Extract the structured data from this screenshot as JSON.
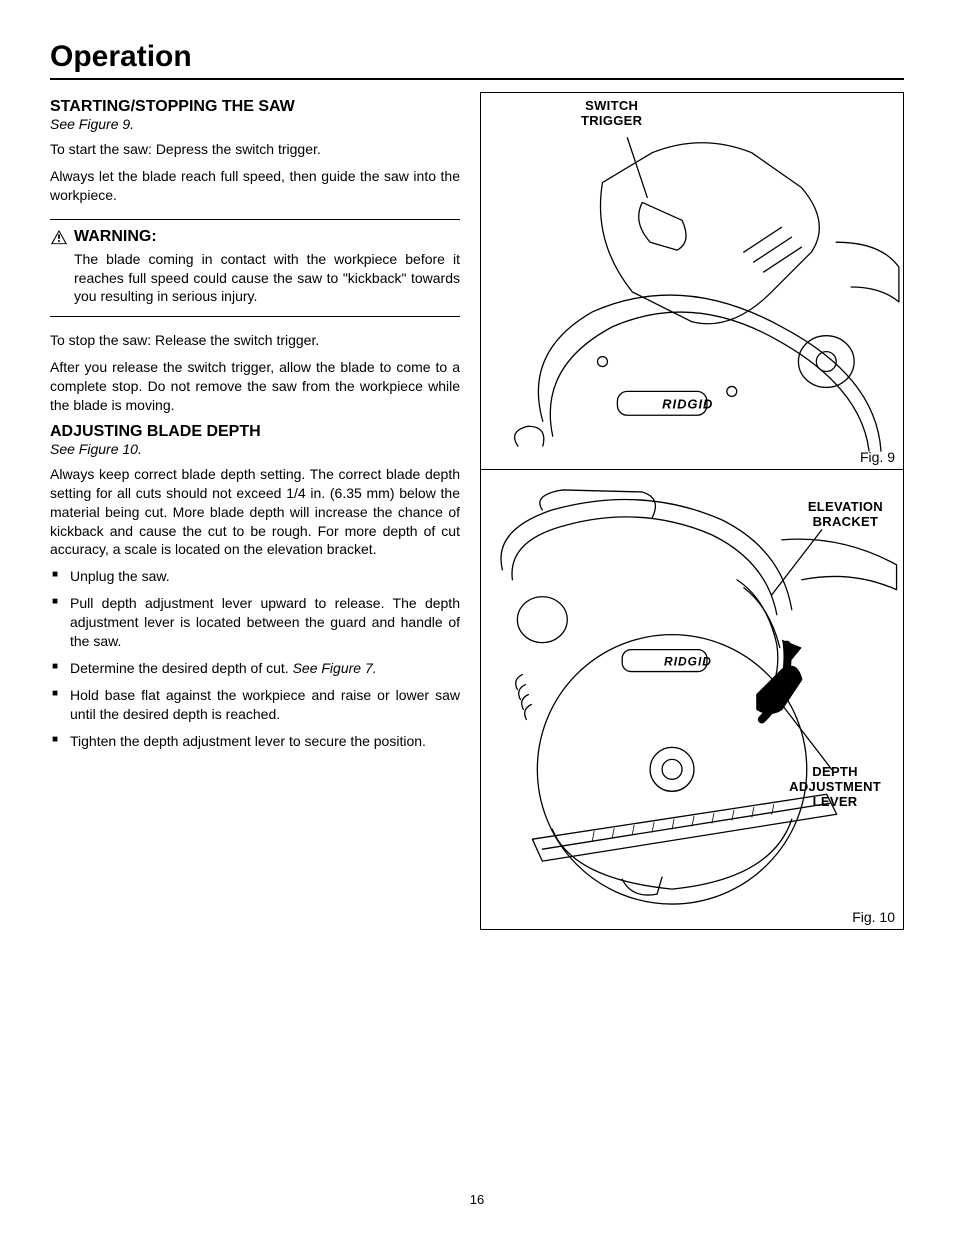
{
  "page": {
    "title": "Operation",
    "number": "16"
  },
  "section1": {
    "heading": "STARTING/STOPPING THE SAW",
    "figref": "See Figure 9.",
    "p1": "To start the saw: Depress the switch trigger.",
    "p2": "Always let the blade reach full speed, then guide the saw into the workpiece."
  },
  "warning": {
    "label": "WARNING:",
    "text": "The blade coming in contact with the workpiece before it reaches full speed could cause the saw to \"kickback\" towards you resulting in serious injury."
  },
  "section1b": {
    "p3": "To stop the saw: Release the switch trigger.",
    "p4": "After you  release the switch trigger, allow the blade to come to a complete stop. Do not remove the saw from the work­piece while the blade is moving."
  },
  "section2": {
    "heading": "ADJUSTING BLADE DEPTH",
    "figref": "See Figure 10.",
    "intro": "Always keep correct blade depth setting. The correct blade depth setting for all cuts should not exceed 1/4 in. (6.35 mm) below the material being cut. More blade depth will increase the chance of kickback and cause the cut to be rough. For more depth of cut accuracy, a scale is located on the elevation bracket.",
    "steps": [
      "Unplug the saw.",
      "Pull depth adjustment lever upward to release. The depth adjustment lever is located between the guard and handle of the saw.",
      "Determine the desired depth of cut. ",
      "Hold base flat against the workpiece and raise or lower saw until the desired depth is reached.",
      "Tighten the depth adjustment lever to secure the position."
    ],
    "step3_suffix": "See Figure 7."
  },
  "figures": {
    "fig9": {
      "caption": "Fig. 9",
      "callouts": {
        "switch_trigger": "SWITCH\nTRIGGER"
      }
    },
    "fig10": {
      "caption": "Fig. 10",
      "callouts": {
        "elevation_bracket": "ELEVATION\nBRACKET",
        "depth_lever": "DEPTH\nADJUSTMENT\nLEVER"
      }
    }
  },
  "style": {
    "text_color": "#000000",
    "bg_color": "#ffffff",
    "title_fontsize": 30,
    "heading_fontsize": 16,
    "body_fontsize": 14,
    "callout_fontsize": 13,
    "border_color": "#000000"
  }
}
